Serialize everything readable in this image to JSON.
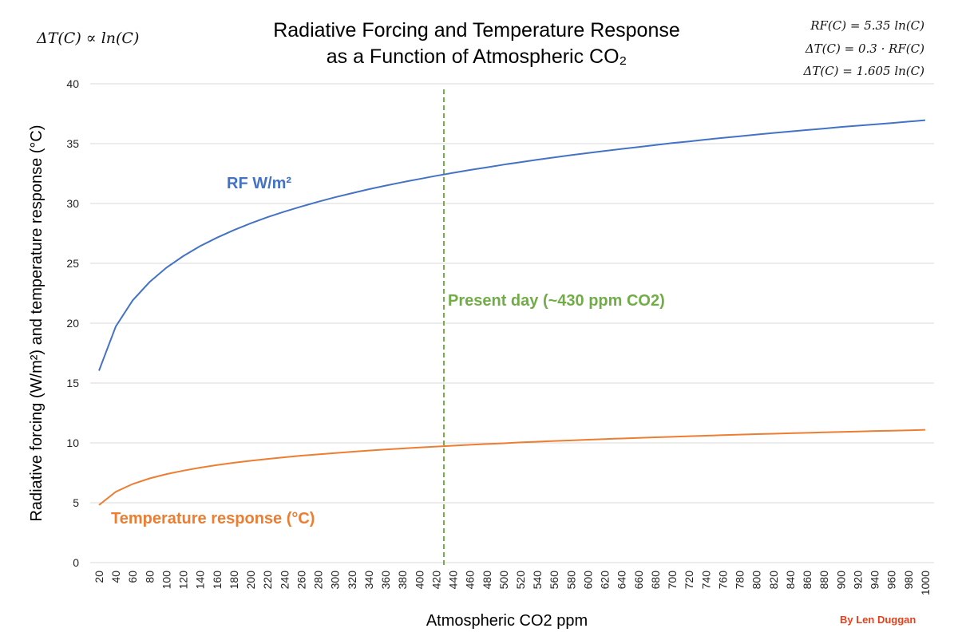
{
  "formulas": {
    "left": "ΔT(C) ∝ ln(C)",
    "right": [
      "RF(C) = 5.35 ln(C)",
      "ΔT(C) = 0.3 · RF(C)",
      "ΔT(C) = 1.605 ln(C)"
    ]
  },
  "credit": "By Len Duggan",
  "colors": {
    "rf": "#4472C4",
    "temp": "#ED7D31",
    "present": "#70AD47",
    "grid": "#D9D9D9",
    "credit": "#E8401C"
  },
  "chart_data": {
    "type": "line",
    "title": [
      "Radiative Forcing and Temperature Response",
      "as a Function of Atmospheric CO₂"
    ],
    "xlabel": "Atmospheric CO2 ppm",
    "ylabel": "Radiative forcing (W/m²) and temperature response (°C)",
    "ylim": [
      0,
      40
    ],
    "yticks": [
      0,
      5,
      10,
      15,
      20,
      25,
      30,
      35,
      40
    ],
    "grid": true,
    "x": [
      20,
      40,
      60,
      80,
      100,
      120,
      140,
      160,
      180,
      200,
      220,
      240,
      260,
      280,
      300,
      320,
      340,
      360,
      380,
      400,
      420,
      440,
      460,
      480,
      500,
      520,
      540,
      560,
      580,
      600,
      620,
      640,
      660,
      680,
      700,
      720,
      740,
      760,
      780,
      800,
      820,
      840,
      860,
      880,
      900,
      920,
      940,
      960,
      980,
      1000
    ],
    "series": [
      {
        "name": "RF W/m²",
        "values": [
          16.03,
          19.74,
          21.91,
          23.44,
          24.64,
          25.61,
          26.44,
          27.15,
          27.78,
          28.35,
          28.86,
          29.32,
          29.75,
          30.15,
          30.52,
          30.86,
          31.19,
          31.49,
          31.78,
          32.05,
          32.31,
          32.56,
          32.8,
          33.02,
          33.25,
          33.45,
          33.66,
          33.85,
          34.04,
          34.22,
          34.39,
          34.56,
          34.72,
          34.88,
          35.05,
          35.19,
          35.34,
          35.48,
          35.62,
          35.76,
          35.89,
          36.02,
          36.14,
          36.26,
          36.39,
          36.5,
          36.61,
          36.72,
          36.84,
          36.96
        ]
      },
      {
        "name": "Temperature response (°C)",
        "values": [
          4.81,
          5.92,
          6.57,
          7.03,
          7.39,
          7.68,
          7.93,
          8.15,
          8.34,
          8.51,
          8.66,
          8.8,
          8.93,
          9.04,
          9.15,
          9.26,
          9.36,
          9.45,
          9.53,
          9.62,
          9.69,
          9.77,
          9.84,
          9.91,
          9.97,
          10.04,
          10.1,
          10.16,
          10.21,
          10.27,
          10.32,
          10.37,
          10.42,
          10.47,
          10.51,
          10.56,
          10.6,
          10.65,
          10.69,
          10.73,
          10.77,
          10.81,
          10.84,
          10.88,
          10.92,
          10.95,
          10.99,
          11.02,
          11.05,
          11.09
        ]
      }
    ],
    "annotations": [
      {
        "text": "Present day (~430 ppm CO2)",
        "x": 430
      }
    ]
  }
}
